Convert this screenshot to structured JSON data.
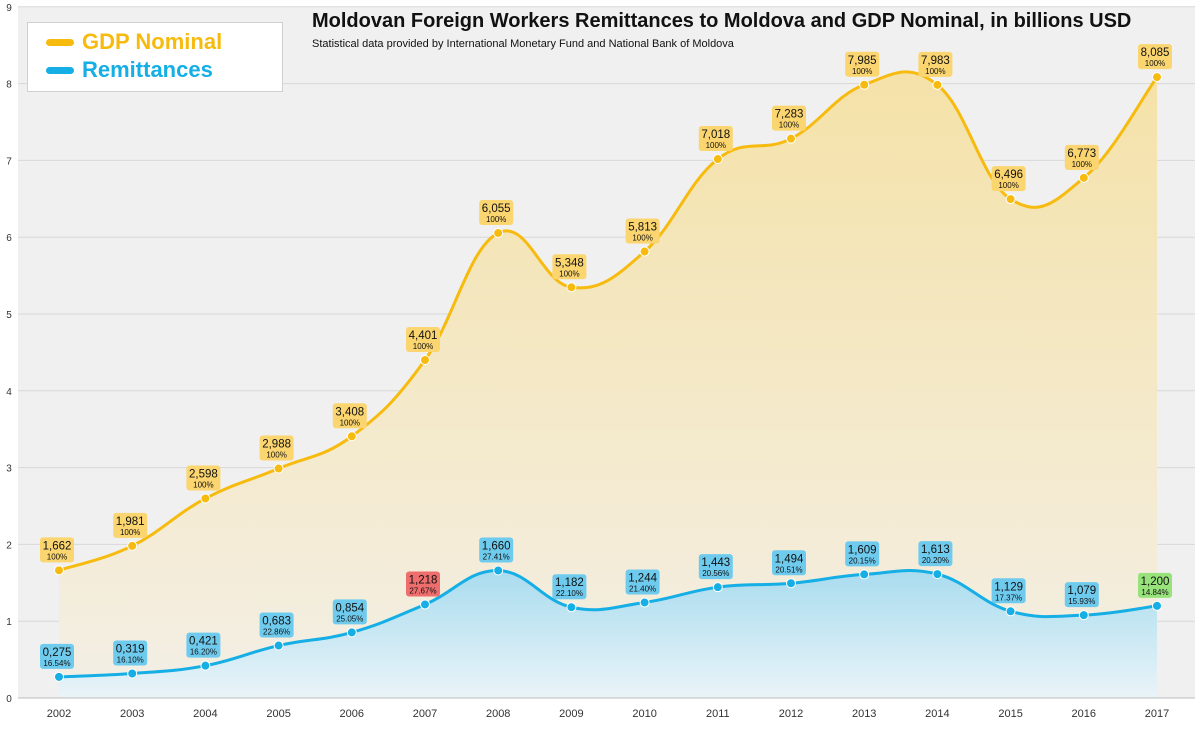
{
  "title": "Moldovan Foreign Workers Remittances to Moldova and GDP Nominal, in billions USD",
  "subtitle": "Statistical data provided by International Monetary Fund and National Bank of Moldova",
  "colors": {
    "gdp": "#f7bb0f",
    "gdp_fill": "#f5e7bd",
    "gdp_label_bg": "#fad570",
    "remit": "#15aee5",
    "remit_fill": "#c3e3ef",
    "remit_label_bg": "#6fcbee",
    "highlight_red": "#ee6d6d",
    "highlight_green": "#97e27a",
    "grid": "#d8d8d8",
    "background": "#f0f0f0"
  },
  "legend": [
    {
      "name": "GDP Nominal",
      "color": "#f7bb0f"
    },
    {
      "name": "Remittances",
      "color": "#15aee5"
    }
  ],
  "chart_data": {
    "type": "area",
    "title": "Moldovan Foreign Workers Remittances to Moldova and GDP Nominal, in billions USD",
    "xlabel": "",
    "ylabel": "",
    "ylim": [
      0,
      9
    ],
    "yticks": [
      "0",
      "1",
      "2",
      "3",
      "4",
      "5",
      "6",
      "7",
      "8",
      "9"
    ],
    "categories": [
      "2002",
      "2003",
      "2004",
      "2005",
      "2006",
      "2007",
      "2008",
      "2009",
      "2010",
      "2011",
      "2012",
      "2013",
      "2014",
      "2015",
      "2016",
      "2017"
    ],
    "series": [
      {
        "name": "GDP Nominal",
        "values": [
          1.662,
          1.981,
          2.598,
          2.988,
          3.408,
          4.401,
          6.055,
          5.348,
          5.813,
          7.018,
          7.283,
          7.985,
          7.983,
          6.496,
          6.773,
          8.085
        ],
        "value_labels": [
          "1,662",
          "1,981",
          "2,598",
          "2,988",
          "3,408",
          "4,401",
          "6,055",
          "5,348",
          "5,813",
          "7,018",
          "7,283",
          "7,985",
          "7,983",
          "6,496",
          "6,773",
          "8,085"
        ],
        "pct_labels": [
          "100%",
          "100%",
          "100%",
          "100%",
          "100%",
          "100%",
          "100%",
          "100%",
          "100%",
          "100%",
          "100%",
          "100%",
          "100%",
          "100%",
          "100%",
          "100%"
        ]
      },
      {
        "name": "Remittances",
        "values": [
          0.275,
          0.319,
          0.421,
          0.683,
          0.854,
          1.218,
          1.66,
          1.182,
          1.244,
          1.443,
          1.494,
          1.609,
          1.613,
          1.129,
          1.079,
          1.2
        ],
        "value_labels": [
          "0,275",
          "0,319",
          "0,421",
          "0,683",
          "0,854",
          "1,218",
          "1,660",
          "1,182",
          "1,244",
          "1,443",
          "1,494",
          "1,609",
          "1,613",
          "1,129",
          "1,079",
          "1,200"
        ],
        "pct_labels": [
          "16.54%",
          "16.10%",
          "16.20%",
          "22.86%",
          "25.05%",
          "27.67%",
          "27.41%",
          "22.10%",
          "21.40%",
          "20.56%",
          "20.51%",
          "20.15%",
          "20.20%",
          "17.37%",
          "15.93%",
          "14.84%"
        ],
        "highlight": {
          "max_index": 5,
          "last_index": 15
        }
      }
    ],
    "legend_position": "top-left"
  }
}
